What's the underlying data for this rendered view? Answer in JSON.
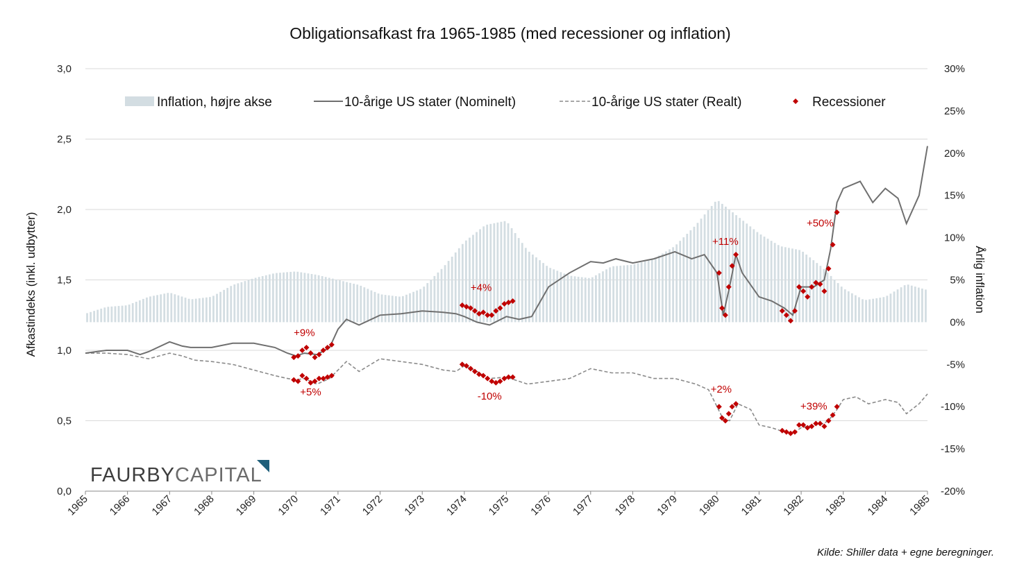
{
  "chart_data": {
    "type": "line",
    "title": "Obligationsafkast fra 1965-1985 (med recessioner og inflation)",
    "ylabel_left": "Afkastindeks (inkl. udbytter)",
    "ylabel_right": "Årlig inflation",
    "source": "Kilde: Shiller data + egne beregninger.",
    "brand": {
      "part1": "FAURBY",
      "part2": "CAPITAL",
      "accent": "#1f5f7a"
    },
    "ylim_left": [
      0,
      3
    ],
    "ylim_right": [
      -20,
      30
    ],
    "xlim": [
      1965,
      1985
    ],
    "yticks_left": [
      "0,0",
      "0,5",
      "1,0",
      "1,5",
      "2,0",
      "2,5",
      "3,0"
    ],
    "yticks_right": [
      "-20%",
      "-15%",
      "-10%",
      "-5%",
      "0%",
      "5%",
      "10%",
      "15%",
      "20%",
      "25%",
      "30%"
    ],
    "xticks": [
      "1965",
      "1966",
      "1967",
      "1968",
      "1969",
      "1970",
      "1971",
      "1972",
      "1973",
      "1974",
      "1975",
      "1976",
      "1977",
      "1978",
      "1979",
      "1980",
      "1981",
      "1982",
      "1983",
      "1984",
      "1985"
    ],
    "grid": "horizontal",
    "legend": [
      "Inflation, højre akse",
      "10-årige US stater (Nominelt)",
      "10-årige US stater (Realt)",
      "Recessioner"
    ],
    "colors": {
      "inflation": "#d3dde2",
      "nominal": "#6f6f6f",
      "real": "#8a8a8a",
      "recession": "#c00000"
    },
    "inflation_series": {
      "name": "Inflation, højre akse",
      "x": [
        1965,
        1965.5,
        1966,
        1966.5,
        1967,
        1967.5,
        1968,
        1968.5,
        1969,
        1969.5,
        1970,
        1970.5,
        1971,
        1971.5,
        1972,
        1972.5,
        1973,
        1973.5,
        1974,
        1974.5,
        1975,
        1975.5,
        1976,
        1976.5,
        1977,
        1977.5,
        1978,
        1978.5,
        1979,
        1979.5,
        1980,
        1980.5,
        1981,
        1981.5,
        1982,
        1982.5,
        1983,
        1983.5,
        1984,
        1984.5,
        1985
      ],
      "values": [
        1.0,
        1.8,
        2.0,
        3.0,
        3.5,
        2.7,
        3.0,
        4.4,
        5.2,
        5.8,
        6.0,
        5.6,
        5.0,
        4.4,
        3.3,
        3.0,
        4.0,
        6.5,
        9.5,
        11.5,
        12.0,
        8.5,
        6.5,
        5.5,
        5.2,
        6.6,
        6.8,
        7.5,
        9.0,
        11.5,
        14.5,
        12.5,
        10.5,
        9.0,
        8.5,
        6.5,
        4.0,
        2.6,
        3.0,
        4.5,
        3.8
      ]
    },
    "series": [
      {
        "name": "10-årige US stater (Nominelt)",
        "x": [
          1965,
          1965.5,
          1966,
          1966.3,
          1966.5,
          1967,
          1967.3,
          1967.5,
          1968,
          1968.5,
          1969,
          1969.5,
          1969.8,
          1970,
          1970.2,
          1970.5,
          1970.8,
          1971,
          1971.2,
          1971.5,
          1972,
          1972.5,
          1973,
          1973.5,
          1973.8,
          1974,
          1974.3,
          1974.6,
          1975,
          1975.3,
          1975.6,
          1976,
          1976.5,
          1977,
          1977.3,
          1977.6,
          1978,
          1978.5,
          1979,
          1979.4,
          1979.7,
          1980,
          1980.15,
          1980.3,
          1980.45,
          1980.6,
          1981,
          1981.3,
          1981.6,
          1981.8,
          1982,
          1982.3,
          1982.55,
          1982.7,
          1982.85,
          1983,
          1983.4,
          1983.7,
          1984,
          1984.3,
          1984.5,
          1984.8,
          1985
        ],
        "values": [
          0.98,
          1.0,
          1.0,
          0.97,
          0.99,
          1.06,
          1.03,
          1.02,
          1.02,
          1.05,
          1.05,
          1.02,
          0.98,
          0.96,
          0.98,
          0.97,
          1.02,
          1.15,
          1.22,
          1.18,
          1.25,
          1.26,
          1.28,
          1.27,
          1.26,
          1.24,
          1.2,
          1.18,
          1.24,
          1.22,
          1.24,
          1.45,
          1.55,
          1.63,
          1.62,
          1.65,
          1.62,
          1.65,
          1.7,
          1.65,
          1.68,
          1.55,
          1.25,
          1.45,
          1.68,
          1.55,
          1.38,
          1.35,
          1.3,
          1.25,
          1.45,
          1.45,
          1.5,
          1.72,
          2.05,
          2.15,
          2.2,
          2.05,
          2.15,
          2.08,
          1.9,
          2.1,
          2.45
        ]
      },
      {
        "name": "10-årige US stater (Realt)",
        "x": [
          1965,
          1965.5,
          1966,
          1966.5,
          1967,
          1967.3,
          1967.6,
          1968,
          1968.5,
          1969,
          1969.5,
          1969.8,
          1970,
          1970.2,
          1970.5,
          1970.8,
          1971,
          1971.2,
          1971.5,
          1972,
          1972.5,
          1973,
          1973.5,
          1973.8,
          1974,
          1974.3,
          1974.6,
          1975,
          1975.5,
          1976,
          1976.5,
          1977,
          1977.5,
          1978,
          1978.5,
          1979,
          1979.5,
          1979.8,
          1980,
          1980.15,
          1980.3,
          1980.5,
          1980.8,
          1981,
          1981.3,
          1981.6,
          1981.8,
          1982,
          1982.3,
          1982.55,
          1982.7,
          1982.85,
          1983,
          1983.3,
          1983.6,
          1984,
          1984.3,
          1984.5,
          1984.8,
          1985
        ],
        "values": [
          0.98,
          0.98,
          0.97,
          0.94,
          0.98,
          0.96,
          0.93,
          0.92,
          0.9,
          0.86,
          0.82,
          0.8,
          0.79,
          0.8,
          0.76,
          0.8,
          0.86,
          0.92,
          0.85,
          0.94,
          0.92,
          0.9,
          0.86,
          0.85,
          0.89,
          0.85,
          0.8,
          0.81,
          0.76,
          0.78,
          0.8,
          0.87,
          0.84,
          0.84,
          0.8,
          0.8,
          0.76,
          0.72,
          0.6,
          0.51,
          0.5,
          0.62,
          0.58,
          0.47,
          0.45,
          0.42,
          0.41,
          0.45,
          0.47,
          0.48,
          0.52,
          0.58,
          0.65,
          0.67,
          0.62,
          0.65,
          0.63,
          0.55,
          0.62,
          0.69
        ]
      }
    ],
    "recession_series": [
      {
        "name": "Recessioner",
        "x": [
          1969.95,
          1970.05,
          1970.15,
          1970.25,
          1970.35,
          1970.45,
          1970.55,
          1970.65,
          1970.75,
          1970.85
        ],
        "values": [
          0.95,
          0.96,
          1.0,
          1.02,
          0.98,
          0.95,
          0.97,
          1.0,
          1.02,
          1.04
        ]
      },
      {
        "name": "Recessioner",
        "x": [
          1969.95,
          1970.05,
          1970.15,
          1970.25,
          1970.35,
          1970.45,
          1970.55,
          1970.65,
          1970.75,
          1970.85
        ],
        "values": [
          0.79,
          0.78,
          0.82,
          0.8,
          0.77,
          0.78,
          0.8,
          0.8,
          0.81,
          0.82
        ]
      },
      {
        "name": "Recessioner",
        "x": [
          1973.95,
          1974.05,
          1974.15,
          1974.25,
          1974.35,
          1974.45,
          1974.55,
          1974.65,
          1974.75,
          1974.85,
          1974.95,
          1975.05,
          1975.15
        ],
        "values": [
          1.32,
          1.31,
          1.3,
          1.28,
          1.26,
          1.27,
          1.25,
          1.25,
          1.28,
          1.3,
          1.33,
          1.34,
          1.35
        ]
      },
      {
        "name": "Recessioner",
        "x": [
          1973.95,
          1974.05,
          1974.15,
          1974.25,
          1974.35,
          1974.45,
          1974.55,
          1974.65,
          1974.75,
          1974.85,
          1974.95,
          1975.05,
          1975.15
        ],
        "values": [
          0.9,
          0.89,
          0.87,
          0.85,
          0.83,
          0.82,
          0.8,
          0.78,
          0.77,
          0.78,
          0.8,
          0.81,
          0.81
        ]
      },
      {
        "name": "Recessioner",
        "x": [
          1980.05,
          1980.12,
          1980.2,
          1980.28,
          1980.36,
          1980.45
        ],
        "values": [
          1.55,
          1.3,
          1.25,
          1.45,
          1.6,
          1.68
        ]
      },
      {
        "name": "Recessioner",
        "x": [
          1980.05,
          1980.12,
          1980.2,
          1980.28,
          1980.36,
          1980.45
        ],
        "values": [
          0.6,
          0.52,
          0.5,
          0.55,
          0.6,
          0.62
        ]
      },
      {
        "name": "Recessioner",
        "x": [
          1981.55,
          1981.65,
          1981.75,
          1981.85,
          1981.95,
          1982.05,
          1982.15,
          1982.25,
          1982.35,
          1982.45,
          1982.55,
          1982.65,
          1982.75,
          1982.85
        ],
        "values": [
          1.28,
          1.25,
          1.21,
          1.28,
          1.45,
          1.42,
          1.38,
          1.45,
          1.48,
          1.47,
          1.42,
          1.58,
          1.75,
          1.98
        ]
      },
      {
        "name": "Recessioner",
        "x": [
          1981.55,
          1981.65,
          1981.75,
          1981.85,
          1981.95,
          1982.05,
          1982.15,
          1982.25,
          1982.35,
          1982.45,
          1982.55,
          1982.65,
          1982.75,
          1982.85
        ],
        "values": [
          0.43,
          0.42,
          0.41,
          0.42,
          0.47,
          0.47,
          0.45,
          0.46,
          0.48,
          0.48,
          0.46,
          0.5,
          0.54,
          0.6
        ]
      }
    ],
    "annotations": [
      {
        "text": "+9%",
        "x": 1970.2,
        "y": 1.1
      },
      {
        "text": "+5%",
        "x": 1970.35,
        "y": 0.68
      },
      {
        "text": "+4%",
        "x": 1974.4,
        "y": 1.42
      },
      {
        "text": "-10%",
        "x": 1974.6,
        "y": 0.65
      },
      {
        "text": "+11%",
        "x": 1980.2,
        "y": 1.75
      },
      {
        "text": "+2%",
        "x": 1980.1,
        "y": 0.7
      },
      {
        "text": "+39%",
        "x": 1982.3,
        "y": 0.58
      },
      {
        "text": "+50%",
        "x": 1982.45,
        "y": 1.88
      }
    ]
  }
}
